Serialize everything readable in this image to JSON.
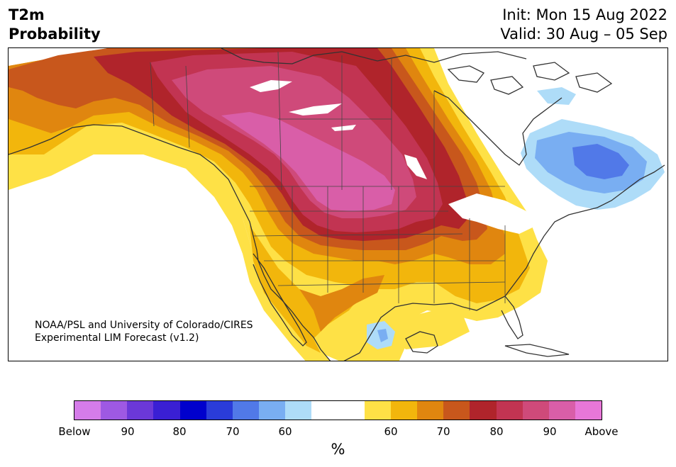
{
  "header": {
    "title_line1": "T2m",
    "title_line2": "Probability",
    "init_line": "Init: Mon 15 Aug 2022",
    "valid_line": "Valid: 30 Aug – 05 Sep"
  },
  "map": {
    "credit_line1": "NOAA/PSL and University of Colorado/CIRES",
    "credit_line2": "Experimental LIM Forecast (v1.2)"
  },
  "colorbar": {
    "colors": [
      "#d57ce9",
      "#9e59e3",
      "#6b38d8",
      "#3a1fd4",
      "#0000cd",
      "#2a3cd9",
      "#5179e8",
      "#79aef2",
      "#aedcf8",
      "#ffffff",
      "#ffffff",
      "#fee146",
      "#f2b60c",
      "#e0860f",
      "#c8571c",
      "#b0242b",
      "#c23452",
      "#cf4a7a",
      "#d95ea8",
      "#e877d8"
    ],
    "tick_labels": [
      "Below",
      "90",
      "80",
      "70",
      "60",
      "60",
      "70",
      "80",
      "90",
      "Above"
    ],
    "unit_label": "%"
  }
}
